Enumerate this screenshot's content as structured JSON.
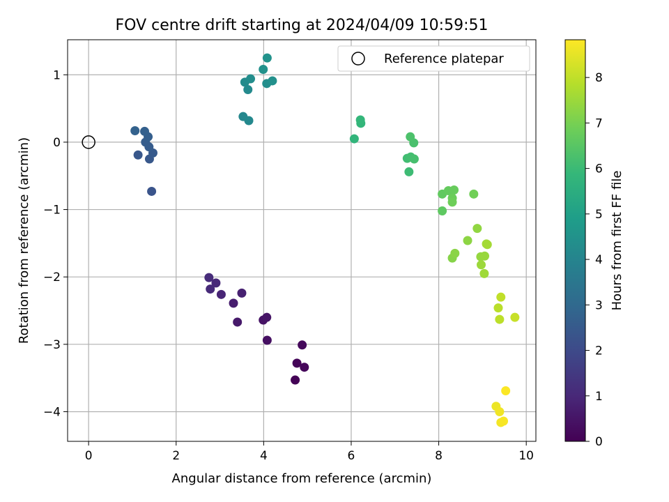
{
  "chart_data": {
    "type": "scatter",
    "title": "FOV centre drift starting at 2024/04/09 10:59:51",
    "xlabel": "Angular distance from reference (arcmin)",
    "ylabel": "Rotation from reference (arcmin)",
    "xlim": [
      -0.48,
      10.22
    ],
    "ylim": [
      -4.44,
      1.52
    ],
    "xticks": [
      0,
      2,
      4,
      6,
      8,
      10
    ],
    "yticks": [
      -4,
      -3,
      -2,
      -1,
      0,
      1
    ],
    "grid": true,
    "legend": {
      "label": "Reference platepar",
      "placement": "top-right"
    },
    "reference_point": {
      "x": 0,
      "y": 0
    },
    "colorbar": {
      "label": "Hours from first FF file",
      "range": [
        0,
        8.83
      ],
      "ticks": [
        0,
        1,
        2,
        3,
        4,
        5,
        6,
        7,
        8
      ],
      "colormap": [
        "#440154",
        "#482878",
        "#3e4989",
        "#31688e",
        "#26828e",
        "#1f9e89",
        "#35b779",
        "#6ece58",
        "#b5de2b",
        "#fde725"
      ]
    },
    "points": [
      {
        "x": 4.72,
        "y": -3.53,
        "h": 0.05
      },
      {
        "x": 4.76,
        "y": -3.28,
        "h": 0.1
      },
      {
        "x": 4.93,
        "y": -3.34,
        "h": 0.15
      },
      {
        "x": 4.88,
        "y": -3.01,
        "h": 0.2
      },
      {
        "x": 4.08,
        "y": -2.94,
        "h": 0.35
      },
      {
        "x": 3.99,
        "y": -2.64,
        "h": 0.45
      },
      {
        "x": 4.07,
        "y": -2.6,
        "h": 0.5
      },
      {
        "x": 3.4,
        "y": -2.67,
        "h": 0.6
      },
      {
        "x": 3.31,
        "y": -2.39,
        "h": 0.7
      },
      {
        "x": 3.5,
        "y": -2.24,
        "h": 0.8
      },
      {
        "x": 3.03,
        "y": -2.26,
        "h": 0.9
      },
      {
        "x": 2.91,
        "y": -2.09,
        "h": 1.0
      },
      {
        "x": 2.78,
        "y": -2.18,
        "h": 1.05
      },
      {
        "x": 2.75,
        "y": -2.01,
        "h": 1.1
      },
      {
        "x": 1.44,
        "y": -0.73,
        "h": 2.3
      },
      {
        "x": 1.13,
        "y": -0.19,
        "h": 2.4
      },
      {
        "x": 1.39,
        "y": -0.25,
        "h": 2.45
      },
      {
        "x": 1.47,
        "y": -0.16,
        "h": 2.5
      },
      {
        "x": 1.38,
        "y": -0.07,
        "h": 2.55
      },
      {
        "x": 1.3,
        "y": 0.0,
        "h": 2.6
      },
      {
        "x": 1.36,
        "y": 0.08,
        "h": 2.65
      },
      {
        "x": 1.28,
        "y": 0.16,
        "h": 2.7
      },
      {
        "x": 1.06,
        "y": 0.17,
        "h": 2.75
      },
      {
        "x": 3.53,
        "y": 0.38,
        "h": 4.1
      },
      {
        "x": 3.66,
        "y": 0.32,
        "h": 4.15
      },
      {
        "x": 3.64,
        "y": 0.78,
        "h": 4.2
      },
      {
        "x": 3.57,
        "y": 0.89,
        "h": 4.25
      },
      {
        "x": 3.7,
        "y": 0.94,
        "h": 4.3
      },
      {
        "x": 4.07,
        "y": 0.87,
        "h": 4.35
      },
      {
        "x": 4.2,
        "y": 0.91,
        "h": 4.4
      },
      {
        "x": 3.99,
        "y": 1.08,
        "h": 4.45
      },
      {
        "x": 4.08,
        "y": 1.25,
        "h": 4.5
      },
      {
        "x": 6.07,
        "y": 0.05,
        "h": 5.75
      },
      {
        "x": 6.22,
        "y": 0.28,
        "h": 5.8
      },
      {
        "x": 6.21,
        "y": 0.33,
        "h": 5.85
      },
      {
        "x": 7.32,
        "y": -0.44,
        "h": 6.05
      },
      {
        "x": 7.28,
        "y": -0.24,
        "h": 6.1
      },
      {
        "x": 7.36,
        "y": -0.22,
        "h": 6.15
      },
      {
        "x": 7.44,
        "y": -0.25,
        "h": 6.2
      },
      {
        "x": 7.43,
        "y": -0.01,
        "h": 6.25
      },
      {
        "x": 7.35,
        "y": 0.08,
        "h": 6.3
      },
      {
        "x": 8.08,
        "y": -1.02,
        "h": 6.6
      },
      {
        "x": 8.08,
        "y": -0.77,
        "h": 6.65
      },
      {
        "x": 8.22,
        "y": -0.72,
        "h": 6.7
      },
      {
        "x": 8.35,
        "y": -0.71,
        "h": 6.75
      },
      {
        "x": 8.31,
        "y": -0.83,
        "h": 6.8
      },
      {
        "x": 8.31,
        "y": -0.89,
        "h": 6.85
      },
      {
        "x": 8.8,
        "y": -0.77,
        "h": 6.9
      },
      {
        "x": 8.31,
        "y": -1.72,
        "h": 7.2
      },
      {
        "x": 8.37,
        "y": -1.65,
        "h": 7.25
      },
      {
        "x": 8.66,
        "y": -1.46,
        "h": 7.3
      },
      {
        "x": 8.88,
        "y": -1.28,
        "h": 7.35
      },
      {
        "x": 8.96,
        "y": -1.7,
        "h": 7.4
      },
      {
        "x": 9.05,
        "y": -1.69,
        "h": 7.45
      },
      {
        "x": 8.97,
        "y": -1.82,
        "h": 7.5
      },
      {
        "x": 9.04,
        "y": -1.95,
        "h": 7.55
      },
      {
        "x": 9.09,
        "y": -1.51,
        "h": 7.6
      },
      {
        "x": 9.11,
        "y": -1.52,
        "h": 7.62
      },
      {
        "x": 9.36,
        "y": -2.46,
        "h": 7.9
      },
      {
        "x": 9.39,
        "y": -2.63,
        "h": 7.95
      },
      {
        "x": 9.42,
        "y": -2.3,
        "h": 8.0
      },
      {
        "x": 9.74,
        "y": -2.6,
        "h": 8.1
      },
      {
        "x": 9.31,
        "y": -3.92,
        "h": 8.6
      },
      {
        "x": 9.39,
        "y": -4.0,
        "h": 8.65
      },
      {
        "x": 9.42,
        "y": -4.16,
        "h": 8.7
      },
      {
        "x": 9.48,
        "y": -4.14,
        "h": 8.75
      },
      {
        "x": 9.53,
        "y": -3.69,
        "h": 8.8
      }
    ]
  }
}
